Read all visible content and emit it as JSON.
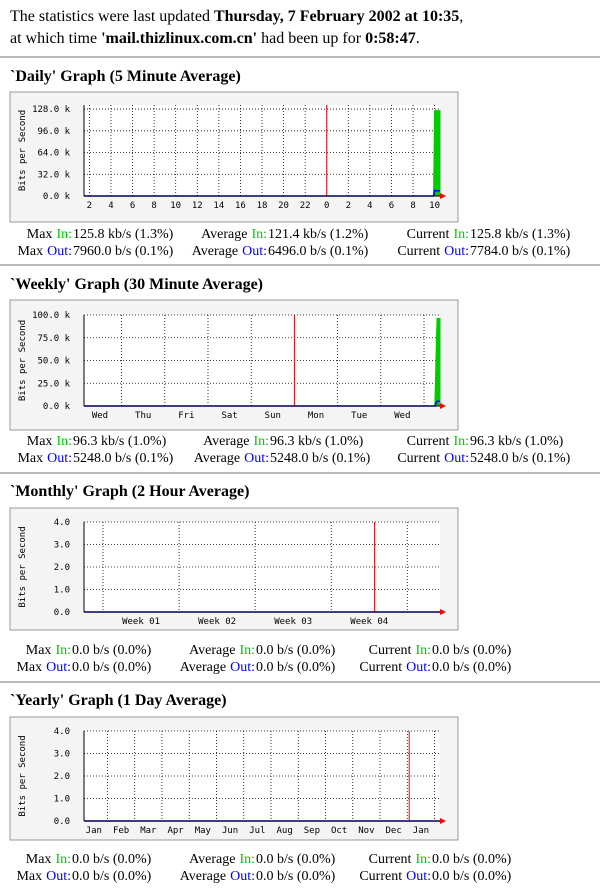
{
  "header": {
    "updated_prefix": "The statistics were last updated",
    "updated": "Thursday, 7 February 2002 at 10:35",
    "updated_suffix": ",",
    "host_prefix": "at which time",
    "host": "'mail.thizlinux.com.cn'",
    "uptime_prefix": "had been up for",
    "uptime": "0:58:47",
    "uptime_suffix": "."
  },
  "chart_data": [
    {
      "type": "area",
      "title": "`Daily' Graph (5 Minute Average)",
      "y_label": "Bits per Second",
      "x": [
        1.5,
        33.9,
        34.0,
        34.5
      ],
      "series": [
        {
          "name": "In",
          "color": "#00cc00",
          "values": [
            0,
            0,
            125800,
            125800
          ]
        },
        {
          "name": "Out",
          "color": "#0000ff",
          "values": [
            0,
            0,
            7960,
            7784
          ]
        }
      ],
      "xlim": [
        1.5,
        34.5
      ],
      "xticks": [
        2,
        4,
        6,
        8,
        10,
        12,
        14,
        16,
        18,
        20,
        22,
        {
          "value": 24,
          "label": "0"
        },
        {
          "value": 26,
          "label": "2"
        },
        {
          "value": 28,
          "label": "4"
        },
        {
          "value": 30,
          "label": "6"
        },
        {
          "value": 32,
          "label": "8"
        },
        {
          "value": 34,
          "label": "10"
        }
      ],
      "ylim": [
        0,
        134000
      ],
      "yticks": [
        {
          "value": 0,
          "label": "0.0 k"
        },
        {
          "value": 32000,
          "label": "32.0 k"
        },
        {
          "value": 64000,
          "label": "64.0 k"
        },
        {
          "value": 96000,
          "label": "96.0 k"
        },
        {
          "value": 128000,
          "label": "128.0 k"
        }
      ],
      "marker": 24,
      "marker_color": "#ff0000",
      "stats": [
        [
          {
            "label": "Max",
            "dir": "In:",
            "value": "125.8 kb/s (1.3%)"
          },
          {
            "label": "Average",
            "dir": "In:",
            "value": "121.4 kb/s (1.2%)"
          },
          {
            "label": "Current",
            "dir": "In:",
            "value": "125.8 kb/s (1.3%)"
          }
        ],
        [
          {
            "label": "Max",
            "dir": "Out:",
            "value": "7960.0 b/s (0.1%)"
          },
          {
            "label": "Average",
            "dir": "Out:",
            "value": "6496.0 b/s (0.1%)"
          },
          {
            "label": "Current",
            "dir": "Out:",
            "value": "7784.0 b/s (0.1%)"
          }
        ]
      ]
    },
    {
      "type": "area",
      "title": "`Weekly' Graph (30 Minute Average)",
      "y_label": "Bits per Second",
      "x": [
        0.13,
        8.25,
        8.3,
        8.37
      ],
      "series": [
        {
          "name": "In",
          "color": "#00cc00",
          "values": [
            0,
            0,
            96300,
            96300
          ]
        },
        {
          "name": "Out",
          "color": "#0000ff",
          "values": [
            0,
            0,
            5248,
            5248
          ]
        }
      ],
      "xlim": [
        0.13,
        8.37
      ],
      "xticks": [
        {
          "value": 0.5,
          "label": "Wed"
        },
        {
          "value": 1.5,
          "label": "Thu"
        },
        {
          "value": 2.5,
          "label": "Fri"
        },
        {
          "value": 3.5,
          "label": "Sat"
        },
        {
          "value": 4.5,
          "label": "Sun"
        },
        {
          "value": 5.5,
          "label": "Mon"
        },
        {
          "value": 6.5,
          "label": "Tue"
        },
        {
          "value": 7.5,
          "label": "Wed"
        }
      ],
      "ylim": [
        0,
        100000
      ],
      "yticks": [
        {
          "value": 0,
          "label": "0.0 k"
        },
        {
          "value": 25000,
          "label": "25.0 k"
        },
        {
          "value": 50000,
          "label": "50.0 k"
        },
        {
          "value": 75000,
          "label": "75.0 k"
        },
        {
          "value": 100000,
          "label": "100.0 k"
        }
      ],
      "marker": 5,
      "marker_color": "#ff0000",
      "stats": [
        [
          {
            "label": "Max",
            "dir": "In:",
            "value": "96.3 kb/s (1.0%)"
          },
          {
            "label": "Average",
            "dir": "In:",
            "value": "96.3 kb/s (1.0%)"
          },
          {
            "label": "Current",
            "dir": "In:",
            "value": "96.3 kb/s (1.0%)"
          }
        ],
        [
          {
            "label": "Max",
            "dir": "Out:",
            "value": "5248.0 b/s (0.1%)"
          },
          {
            "label": "Average",
            "dir": "Out:",
            "value": "5248.0 b/s (0.1%)"
          },
          {
            "label": "Current",
            "dir": "Out:",
            "value": "5248.0 b/s (0.1%)"
          }
        ]
      ]
    },
    {
      "type": "area",
      "title": "`Monthly' Graph (2 Hour Average)",
      "y_label": "Bits per Second",
      "x": [
        0.75,
        5.43
      ],
      "series": [
        {
          "name": "In",
          "color": "#00cc00",
          "values": [
            0,
            0
          ]
        },
        {
          "name": "Out",
          "color": "#0000ff",
          "values": [
            0,
            0
          ]
        }
      ],
      "xlim": [
        0.75,
        5.43
      ],
      "xticks": [
        {
          "value": 1.5,
          "label": "Week 01"
        },
        {
          "value": 2.5,
          "label": "Week 02"
        },
        {
          "value": 3.5,
          "label": "Week 03"
        },
        {
          "value": 4.5,
          "label": "Week 04"
        }
      ],
      "ylim": [
        0,
        4
      ],
      "yticks": [
        {
          "value": 0,
          "label": "0.0"
        },
        {
          "value": 1,
          "label": "1.0"
        },
        {
          "value": 2,
          "label": "2.0"
        },
        {
          "value": 3,
          "label": "3.0"
        },
        {
          "value": 4,
          "label": "4.0"
        }
      ],
      "marker": 4.57,
      "marker_color": "#ff0000",
      "stats": [
        [
          {
            "label": "Max",
            "dir": "In:",
            "value": "0.0 b/s (0.0%)"
          },
          {
            "label": "Average",
            "dir": "In:",
            "value": "0.0 b/s (0.0%)"
          },
          {
            "label": "Current",
            "dir": "In:",
            "value": "0.0 b/s (0.0%)"
          }
        ],
        [
          {
            "label": "Max",
            "dir": "Out:",
            "value": "0.0 b/s (0.0%)"
          },
          {
            "label": "Average",
            "dir": "Out:",
            "value": "0.0 b/s (0.0%)"
          },
          {
            "label": "Current",
            "dir": "Out:",
            "value": "0.0 b/s (0.0%)"
          }
        ]
      ]
    },
    {
      "type": "area",
      "title": "`Yearly' Graph (1 Day Average)",
      "y_label": "Bits per Second",
      "x": [
        0.14,
        13.2
      ],
      "series": [
        {
          "name": "In",
          "color": "#00cc00",
          "values": [
            0,
            0
          ]
        },
        {
          "name": "Out",
          "color": "#0000ff",
          "values": [
            0,
            0
          ]
        }
      ],
      "xlim": [
        0.14,
        13.2
      ],
      "xticks": [
        {
          "value": 0.5,
          "label": "Jan"
        },
        {
          "value": 1.5,
          "label": "Feb"
        },
        {
          "value": 2.5,
          "label": "Mar"
        },
        {
          "value": 3.5,
          "label": "Apr"
        },
        {
          "value": 4.5,
          "label": "May"
        },
        {
          "value": 5.5,
          "label": "Jun"
        },
        {
          "value": 6.5,
          "label": "Jul"
        },
        {
          "value": 7.5,
          "label": "Aug"
        },
        {
          "value": 8.5,
          "label": "Sep"
        },
        {
          "value": 9.5,
          "label": "Oct"
        },
        {
          "value": 10.5,
          "label": "Nov"
        },
        {
          "value": 11.5,
          "label": "Dec"
        },
        {
          "value": 12.5,
          "label": "Jan"
        }
      ],
      "ylim": [
        0,
        4
      ],
      "yticks": [
        {
          "value": 0,
          "label": "0.0"
        },
        {
          "value": 1,
          "label": "1.0"
        },
        {
          "value": 2,
          "label": "2.0"
        },
        {
          "value": 3,
          "label": "3.0"
        },
        {
          "value": 4,
          "label": "4.0"
        }
      ],
      "marker": 12.07,
      "marker_color": "#ff0000",
      "stats": [
        [
          {
            "label": "Max",
            "dir": "In:",
            "value": "0.0 b/s (0.0%)"
          },
          {
            "label": "Average",
            "dir": "In:",
            "value": "0.0 b/s (0.0%)"
          },
          {
            "label": "Current",
            "dir": "In:",
            "value": "0.0 b/s (0.0%)"
          }
        ],
        [
          {
            "label": "Max",
            "dir": "Out:",
            "value": "0.0 b/s (0.0%)"
          },
          {
            "label": "Average",
            "dir": "Out:",
            "value": "0.0 b/s (0.0%)"
          },
          {
            "label": "Current",
            "dir": "Out:",
            "value": "0.0 b/s (0.0%)"
          }
        ]
      ]
    }
  ]
}
